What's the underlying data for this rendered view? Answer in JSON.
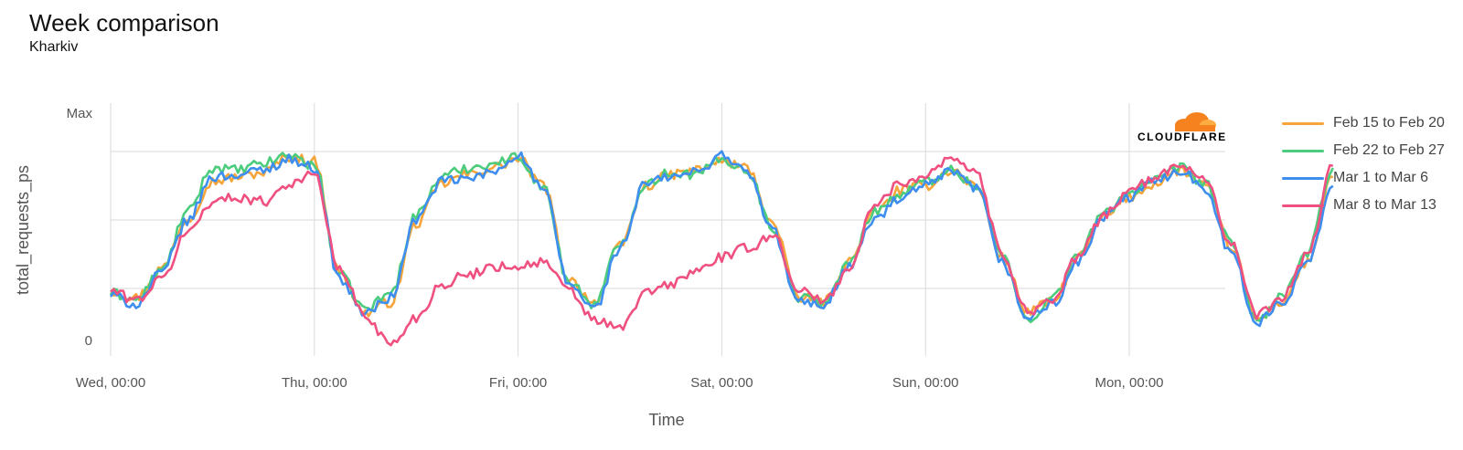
{
  "header": {
    "title": "Week comparison",
    "subtitle": "Kharkiv"
  },
  "logo": {
    "text": "CLOUDFLARE",
    "icon": "cloudflare-cloud-icon",
    "color": "#f6821f"
  },
  "chart_data": {
    "type": "line",
    "title": "Week comparison",
    "subtitle": "Kharkiv",
    "xlabel": "Time",
    "ylabel": "total_requests_ps",
    "x_ticks": [
      "Wed, 00:00",
      "Thu, 00:00",
      "Fri, 00:00",
      "Sat, 00:00",
      "Sun, 00:00",
      "Mon, 00:00"
    ],
    "y_ticks": [
      "0",
      "Max"
    ],
    "x_range_days": [
      0,
      5.5
    ],
    "ylim": [
      0,
      1
    ],
    "grid": true,
    "legend_position": "right",
    "sample_step_hours": 3,
    "series": [
      {
        "name": "Feb 15 to Feb 20",
        "color": "#f6a53b",
        "values": [
          0.25,
          0.22,
          0.35,
          0.57,
          0.74,
          0.76,
          0.78,
          0.85,
          0.83,
          0.33,
          0.15,
          0.2,
          0.55,
          0.73,
          0.77,
          0.8,
          0.84,
          0.72,
          0.3,
          0.2,
          0.45,
          0.72,
          0.77,
          0.79,
          0.83,
          0.8,
          0.55,
          0.22,
          0.2,
          0.38,
          0.6,
          0.7,
          0.72,
          0.79,
          0.72,
          0.4,
          0.16,
          0.2,
          0.4,
          0.58,
          0.67,
          0.73,
          0.79,
          0.72,
          0.45,
          0.12,
          0.2,
          0.38,
          0.76
        ]
      },
      {
        "name": "Feb 22 to Feb 27",
        "color": "#4ccc7d",
        "values": [
          0.24,
          0.21,
          0.34,
          0.6,
          0.8,
          0.79,
          0.82,
          0.86,
          0.81,
          0.32,
          0.17,
          0.24,
          0.59,
          0.76,
          0.8,
          0.82,
          0.85,
          0.71,
          0.29,
          0.19,
          0.46,
          0.73,
          0.78,
          0.77,
          0.84,
          0.79,
          0.53,
          0.22,
          0.2,
          0.37,
          0.61,
          0.68,
          0.74,
          0.79,
          0.72,
          0.41,
          0.12,
          0.22,
          0.41,
          0.6,
          0.69,
          0.74,
          0.8,
          0.73,
          0.46,
          0.12,
          0.22,
          0.42,
          0.8
        ]
      },
      {
        "name": "Mar 1 to Mar 6",
        "color": "#3e8ef0",
        "values": [
          0.23,
          0.19,
          0.33,
          0.56,
          0.76,
          0.77,
          0.79,
          0.84,
          0.8,
          0.3,
          0.15,
          0.22,
          0.57,
          0.74,
          0.75,
          0.78,
          0.86,
          0.7,
          0.28,
          0.17,
          0.44,
          0.73,
          0.76,
          0.78,
          0.86,
          0.78,
          0.52,
          0.2,
          0.19,
          0.36,
          0.57,
          0.66,
          0.72,
          0.78,
          0.71,
          0.38,
          0.13,
          0.19,
          0.38,
          0.58,
          0.67,
          0.74,
          0.79,
          0.71,
          0.42,
          0.11,
          0.19,
          0.39,
          0.72
        ]
      },
      {
        "name": "Mar 8 to Mar 13",
        "color": "#f0507f",
        "values": [
          0.25,
          0.21,
          0.3,
          0.51,
          0.65,
          0.67,
          0.65,
          0.73,
          0.77,
          0.34,
          0.14,
          0.01,
          0.13,
          0.28,
          0.32,
          0.36,
          0.36,
          0.38,
          0.25,
          0.12,
          0.08,
          0.24,
          0.28,
          0.34,
          0.4,
          0.44,
          0.5,
          0.26,
          0.2,
          0.35,
          0.63,
          0.73,
          0.77,
          0.85,
          0.78,
          0.42,
          0.16,
          0.21,
          0.4,
          0.59,
          0.7,
          0.75,
          0.82,
          0.75,
          0.46,
          0.14,
          0.22,
          0.41,
          0.81
        ]
      }
    ]
  }
}
